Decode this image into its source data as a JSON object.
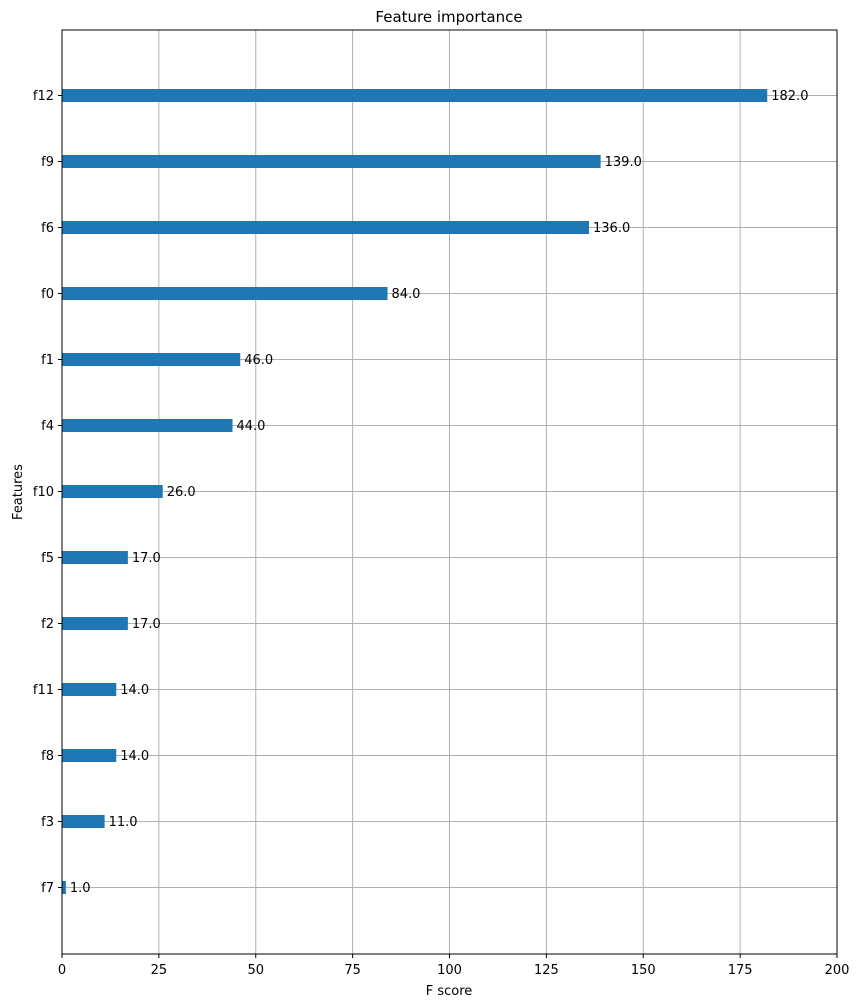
{
  "chart_data": {
    "type": "bar",
    "orientation": "horizontal",
    "title": "Feature importance",
    "xlabel": "F score",
    "ylabel": "Features",
    "xlim": [
      0,
      200
    ],
    "xticks": [
      0,
      25,
      50,
      75,
      100,
      125,
      150,
      175,
      200
    ],
    "grid": true,
    "bar_color": "#1f77b4",
    "categories": [
      "f12",
      "f9",
      "f6",
      "f0",
      "f1",
      "f4",
      "f10",
      "f5",
      "f2",
      "f11",
      "f8",
      "f3",
      "f7"
    ],
    "values": [
      182.0,
      139.0,
      136.0,
      84.0,
      46.0,
      44.0,
      26.0,
      17.0,
      17.0,
      14.0,
      14.0,
      11.0,
      1.0
    ],
    "value_labels": [
      "182.0",
      "139.0",
      "136.0",
      "84.0",
      "46.0",
      "44.0",
      "26.0",
      "17.0",
      "17.0",
      "14.0",
      "14.0",
      "11.0",
      "1.0"
    ]
  }
}
